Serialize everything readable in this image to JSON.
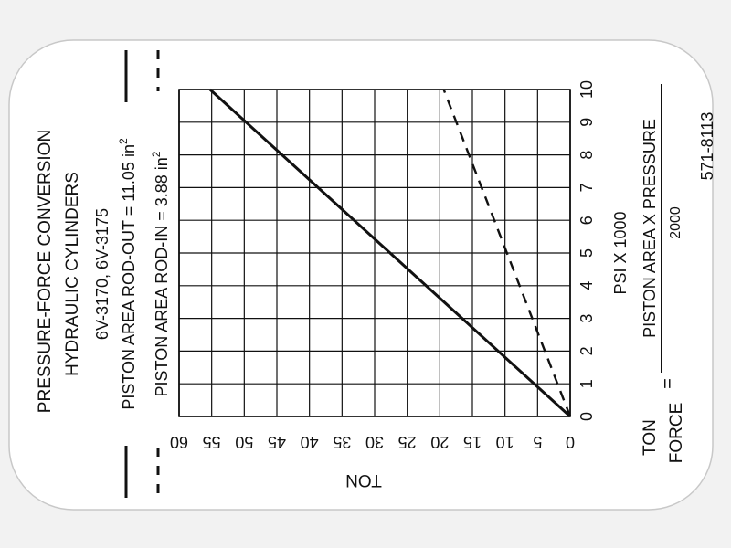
{
  "decal": {
    "title_line1": "PRESSURE-FORCE CONVERSION",
    "title_line2": "HYDRAULIC CYLINDERS",
    "models": "6V-3170, 6V-3175",
    "rod_out_label": "PISTON AREA ROD-OUT = 11.05 in",
    "rod_in_label": "PISTON AREA ROD-IN = 3.88 in",
    "superscript": "2",
    "formula_left_top": "TON",
    "formula_left_bottom": "FORCE",
    "formula_equals": "=",
    "formula_numerator": "PISTON AREA X PRESSURE",
    "formula_denominator": "2000",
    "part_number": "571-8113"
  },
  "colors": {
    "ink": "#111111",
    "card": "#ffffff",
    "background": "#f2f2f2"
  },
  "chart_data": {
    "type": "line",
    "xlabel": "TON",
    "ylabel": "PSI X 1000",
    "xlim": [
      0,
      60
    ],
    "ylim": [
      0,
      10
    ],
    "x_ticks": [
      "0",
      "5",
      "10",
      "15",
      "20",
      "25",
      "30",
      "35",
      "40",
      "45",
      "50",
      "55",
      "60"
    ],
    "y_ticks": [
      "0",
      "1",
      "2",
      "3",
      "4",
      "5",
      "6",
      "7",
      "8",
      "9",
      "10"
    ],
    "grid": true,
    "orientation": "rotated 90 degrees counter-clockwise",
    "series": [
      {
        "line_style": "solid",
        "points": [
          [
            0,
            0
          ],
          [
            55.25,
            10
          ]
        ]
      },
      {
        "line_style": "dashed",
        "points": [
          [
            0,
            0
          ],
          [
            19.4,
            10
          ]
        ]
      }
    ]
  }
}
